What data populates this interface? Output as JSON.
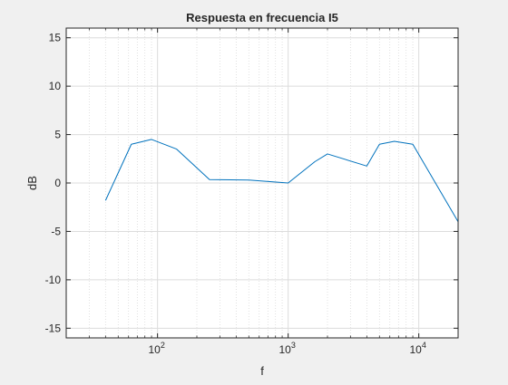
{
  "chart_data": {
    "type": "line",
    "title": "Respuesta en frecuencia I5",
    "xlabel": "f",
    "ylabel": "dB",
    "x_scale": "log",
    "xlim": [
      20,
      20000
    ],
    "ylim": [
      -16,
      16
    ],
    "grid": true,
    "minor_grid_x": true,
    "y_ticks": [
      -15,
      -10,
      -5,
      0,
      5,
      10,
      15
    ],
    "y_tick_labels": [
      "-15",
      "-10",
      "-5",
      "0",
      "5",
      "10",
      "15"
    ],
    "x_ticks": [
      {
        "value": 100,
        "base": "10",
        "exp": "2"
      },
      {
        "value": 1000,
        "base": "10",
        "exp": "3"
      },
      {
        "value": 10000,
        "base": "10",
        "exp": "4"
      }
    ],
    "series": [
      {
        "color": "#0072bd",
        "x": [
          40,
          63,
          90,
          140,
          250,
          500,
          1000,
          1600,
          2000,
          4000,
          5000,
          6500,
          9000,
          20000
        ],
        "y": [
          -1.8,
          4.0,
          4.5,
          3.5,
          0.35,
          0.3,
          0.0,
          2.2,
          3.0,
          1.75,
          4.0,
          4.3,
          4.0,
          -4.0
        ]
      }
    ]
  }
}
